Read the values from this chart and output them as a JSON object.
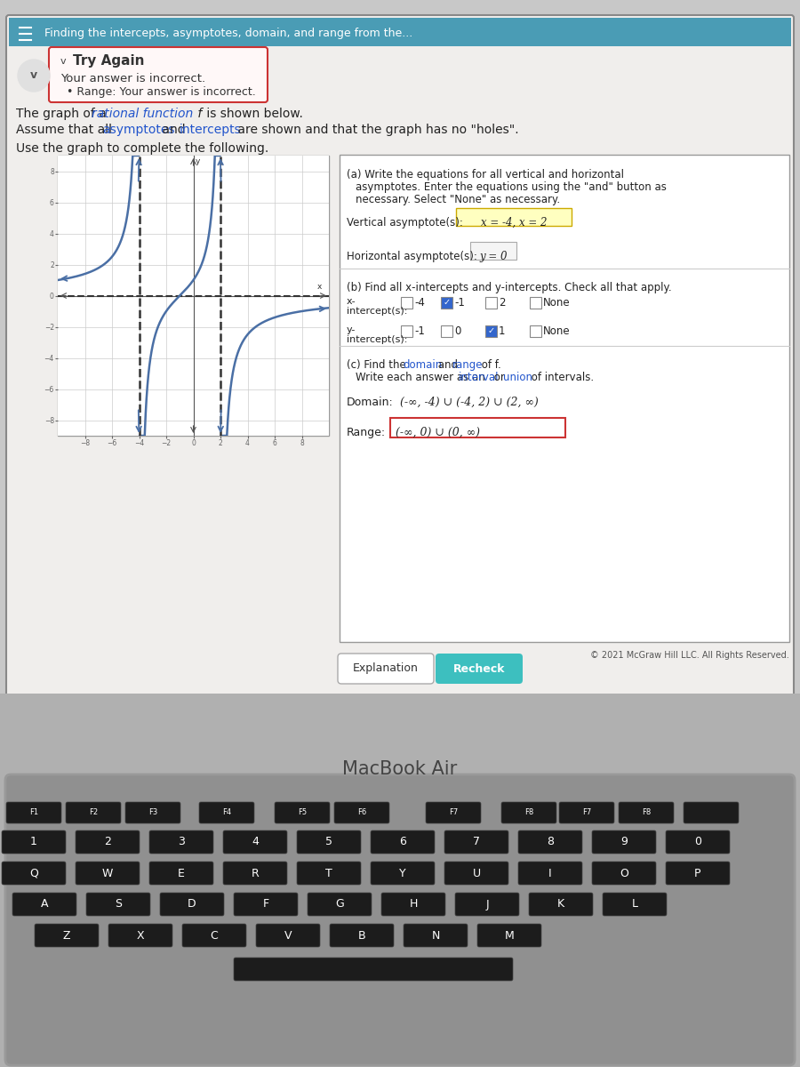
{
  "bg_color": "#c8c8c8",
  "screen_bg": "#f0eeec",
  "header_bg": "#4a9cb5",
  "header_text": "Finding the intercepts, asymptotes, domain, and range from the...",
  "header_text_color": "#ffffff",
  "try_again_border": "#cc3333",
  "try_again_bg": "#fff8f8",
  "try_again_text": "Try Again",
  "error_msg1": "Your answer is incorrect.",
  "error_msg2": "Range: Your answer is incorrect.",
  "body_text3": "Use the graph to complete the following.",
  "vert_asym_answer": "x = -4, x = 2",
  "horiz_asym_answer": "y = 0",
  "curve_color": "#4a6fa5",
  "answer_highlight": "#ffffc0",
  "domain_answer": "(-∞, -4) ∪ (-4, 2) ∪ (2, ∞)",
  "range_answer": "(-∞, 0) ∪ (0, ∞)",
  "btn1_text": "Explanation",
  "btn2_text": "Recheck",
  "btn2_color": "#3dbfbf",
  "copyright": "© 2021 McGraw Hill LLC. All Rights Reserved.",
  "macbook_text": "MacBook Air"
}
